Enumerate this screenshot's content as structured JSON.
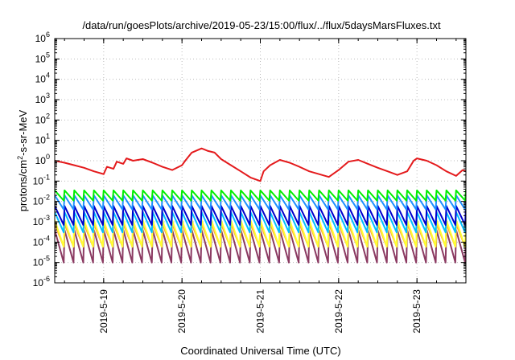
{
  "chart_data": {
    "type": "line",
    "title": "/data/run/goesPlots/archive/2019-05-23/15:00/flux/../flux/5daysMarsFluxes.txt",
    "xlabel": "Coordinated Universal Time (UTC)",
    "ylabel": {
      "pre": "protons/cm",
      "sup": "2",
      "post": "-s-sr-MeV"
    },
    "x_scale": "time",
    "x_ticks": [
      "2019-5-19",
      "2019-5-20",
      "2019-5-21",
      "2019-5-22",
      "2019-5-23"
    ],
    "xlim": [
      "2019-05-18T09:00",
      "2019-05-23T15:00"
    ],
    "y_scale": "log",
    "ylim": [
      1e-06,
      1000000.0
    ],
    "y_ticks": [
      {
        "base": "10",
        "exp": "-6"
      },
      {
        "base": "10",
        "exp": "-5"
      },
      {
        "base": "10",
        "exp": "-4"
      },
      {
        "base": "10",
        "exp": "-3"
      },
      {
        "base": "10",
        "exp": "-2"
      },
      {
        "base": "10",
        "exp": "-1"
      },
      {
        "base": "10",
        "exp": "0"
      },
      {
        "base": "10",
        "exp": "1"
      },
      {
        "base": "10",
        "exp": "2"
      },
      {
        "base": "10",
        "exp": "3"
      },
      {
        "base": "10",
        "exp": "4"
      },
      {
        "base": "10",
        "exp": "5"
      },
      {
        "base": "10",
        "exp": "6"
      }
    ],
    "grid": true,
    "legend": "none",
    "series": [
      {
        "color": "#e41a1c",
        "points": [
          [
            "2019-05-18T09:00",
            1.0
          ],
          [
            "2019-05-18T12:00",
            0.8
          ],
          [
            "2019-05-18T15:00",
            0.6
          ],
          [
            "2019-05-18T18:00",
            0.45
          ],
          [
            "2019-05-18T21:00",
            0.3
          ],
          [
            "2019-05-19T00:00",
            0.22
          ],
          [
            "2019-05-19T01:00",
            0.5
          ],
          [
            "2019-05-19T03:00",
            0.4
          ],
          [
            "2019-05-19T04:00",
            0.9
          ],
          [
            "2019-05-19T06:00",
            0.7
          ],
          [
            "2019-05-19T07:00",
            1.3
          ],
          [
            "2019-05-19T09:00",
            1.0
          ],
          [
            "2019-05-19T12:00",
            1.2
          ],
          [
            "2019-05-19T15:00",
            0.8
          ],
          [
            "2019-05-19T18:00",
            0.5
          ],
          [
            "2019-05-19T21:00",
            0.35
          ],
          [
            "2019-05-20T00:00",
            0.6
          ],
          [
            "2019-05-20T01:00",
            1.0
          ],
          [
            "2019-05-20T03:00",
            2.5
          ],
          [
            "2019-05-20T06:00",
            4.0
          ],
          [
            "2019-05-20T08:00",
            3.0
          ],
          [
            "2019-05-20T10:00",
            2.5
          ],
          [
            "2019-05-20T12:00",
            1.2
          ],
          [
            "2019-05-20T15:00",
            0.6
          ],
          [
            "2019-05-20T18:00",
            0.3
          ],
          [
            "2019-05-20T21:00",
            0.15
          ],
          [
            "2019-05-21T00:00",
            0.1
          ],
          [
            "2019-05-21T01:00",
            0.3
          ],
          [
            "2019-05-21T03:00",
            0.6
          ],
          [
            "2019-05-21T06:00",
            1.1
          ],
          [
            "2019-05-21T09:00",
            0.8
          ],
          [
            "2019-05-21T12:00",
            0.5
          ],
          [
            "2019-05-21T15:00",
            0.3
          ],
          [
            "2019-05-21T18:00",
            0.22
          ],
          [
            "2019-05-21T21:00",
            0.16
          ],
          [
            "2019-05-22T00:00",
            0.35
          ],
          [
            "2019-05-22T03:00",
            0.9
          ],
          [
            "2019-05-22T06:00",
            1.1
          ],
          [
            "2019-05-22T09:00",
            0.7
          ],
          [
            "2019-05-22T12:00",
            0.45
          ],
          [
            "2019-05-22T15:00",
            0.3
          ],
          [
            "2019-05-22T18:00",
            0.2
          ],
          [
            "2019-05-22T21:00",
            0.3
          ],
          [
            "2019-05-22T23:00",
            1.0
          ],
          [
            "2019-05-23T00:00",
            1.3
          ],
          [
            "2019-05-23T03:00",
            1.0
          ],
          [
            "2019-05-23T06:00",
            0.6
          ],
          [
            "2019-05-23T09:00",
            0.3
          ],
          [
            "2019-05-23T12:00",
            0.18
          ],
          [
            "2019-05-23T14:00",
            0.35
          ],
          [
            "2019-05-23T15:00",
            0.3
          ]
        ]
      },
      {
        "color": "#00ee00",
        "sawtooth": {
          "high": 0.035,
          "low": 0.011
        }
      },
      {
        "color": "#1e90ff",
        "sawtooth": {
          "high": 0.02,
          "low": 0.004
        }
      },
      {
        "color": "#0000cd",
        "sawtooth": {
          "high": 0.006,
          "low": 0.0007
        }
      },
      {
        "color": "#00bfff",
        "sawtooth": {
          "high": 0.003,
          "low": 0.0003
        }
      },
      {
        "color": "#ffff33",
        "sawtooth": {
          "high": 0.0012,
          "low": 6e-05
        }
      },
      {
        "color": "#ff9a3c",
        "sawtooth": {
          "high": 0.0008,
          "low": 6e-05
        }
      },
      {
        "color": "#8b3a62",
        "sawtooth": {
          "high": 0.0004,
          "low": 1e-05
        }
      }
    ]
  }
}
